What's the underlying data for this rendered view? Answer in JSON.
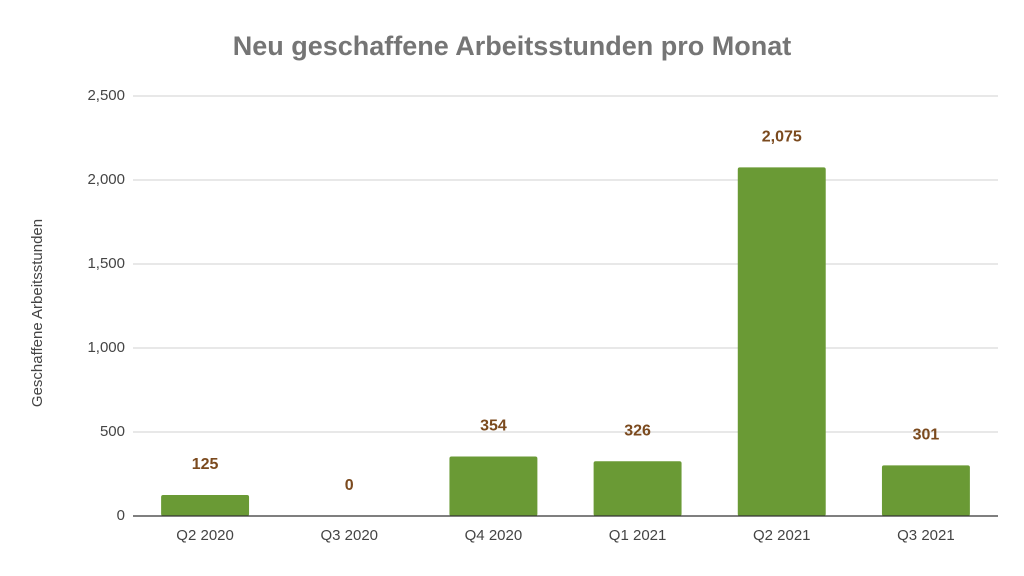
{
  "chart_data": {
    "type": "bar",
    "title": "Neu geschaffene Arbeitsstunden pro Monat",
    "y_label": "Geschaffene Arbeitsstunden",
    "categories": [
      "Q2 2020",
      "Q3 2020",
      "Q4 2020",
      "Q1 2021",
      "Q2 2021",
      "Q3 2021"
    ],
    "values": [
      125,
      0,
      354,
      326,
      2075,
      301
    ],
    "value_labels": [
      "125",
      "0",
      "354",
      "326",
      "2,075",
      "301"
    ],
    "color": "#6a9a35",
    "ylim": [
      0,
      2500
    ],
    "yticks": [
      0,
      {
        "value": 500,
        "label": "500"
      },
      {
        "value": 1000,
        "label": "1,000"
      },
      {
        "value": 1500,
        "label": "1,500"
      },
      {
        "value": 2000,
        "label": "2,000"
      },
      {
        "value": 2500,
        "label": "2,500"
      }
    ],
    "grid": true
  }
}
